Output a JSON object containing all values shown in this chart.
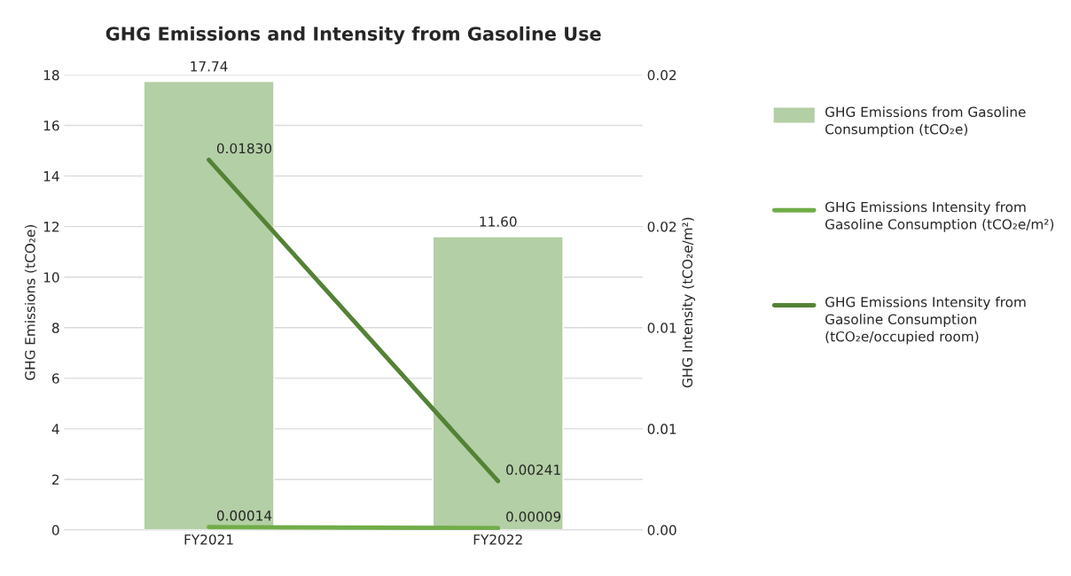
{
  "chart_data": {
    "type": "bar",
    "title": "GHG Emissions and Intensity from Gasoline Use",
    "categories": [
      "FY2021",
      "FY2022"
    ],
    "ylabel": "GHG Emissions (tCO₂e)",
    "y2label": "GHG Intensity (tCO₂e/m²)",
    "ylim": [
      0,
      18
    ],
    "yticks": [
      0,
      2,
      4,
      6,
      8,
      10,
      12,
      14,
      16,
      18
    ],
    "y2lim": [
      0,
      0.0225
    ],
    "y2ticks": [
      {
        "value": 0,
        "label": "0.00"
      },
      {
        "value": 0.005,
        "label": "0.01"
      },
      {
        "value": 0.01,
        "label": "0.01"
      },
      {
        "value": 0.015,
        "label": "0.02"
      },
      {
        "value": 0.0225,
        "label": "0.02"
      }
    ],
    "series": [
      {
        "name": "GHG Emissions from Gasoline Consumption (tCO₂e)",
        "color": "#b3cfa5",
        "values": [
          17.74,
          11.6
        ],
        "value_labels": [
          "17.74",
          "11.60"
        ]
      },
      {
        "name": "GHG Emissions Intensity from Gasoline Consumption (tCO₂e/m²)",
        "type": "line",
        "axis": "y2",
        "color": "#70ad47",
        "values": [
          0.00014,
          9e-05
        ],
        "value_labels": [
          "0.00014",
          "0.00009"
        ]
      },
      {
        "name": "GHG Emissions Intensity from Gasoline Consumption (tCO₂e/occupied room)",
        "type": "line",
        "axis": "y2",
        "color": "#548235",
        "values": [
          0.0183,
          0.00241
        ],
        "value_labels": [
          "0.01830",
          "0.00241"
        ]
      }
    ],
    "grid": "y",
    "legend": "right",
    "marker": "none"
  }
}
